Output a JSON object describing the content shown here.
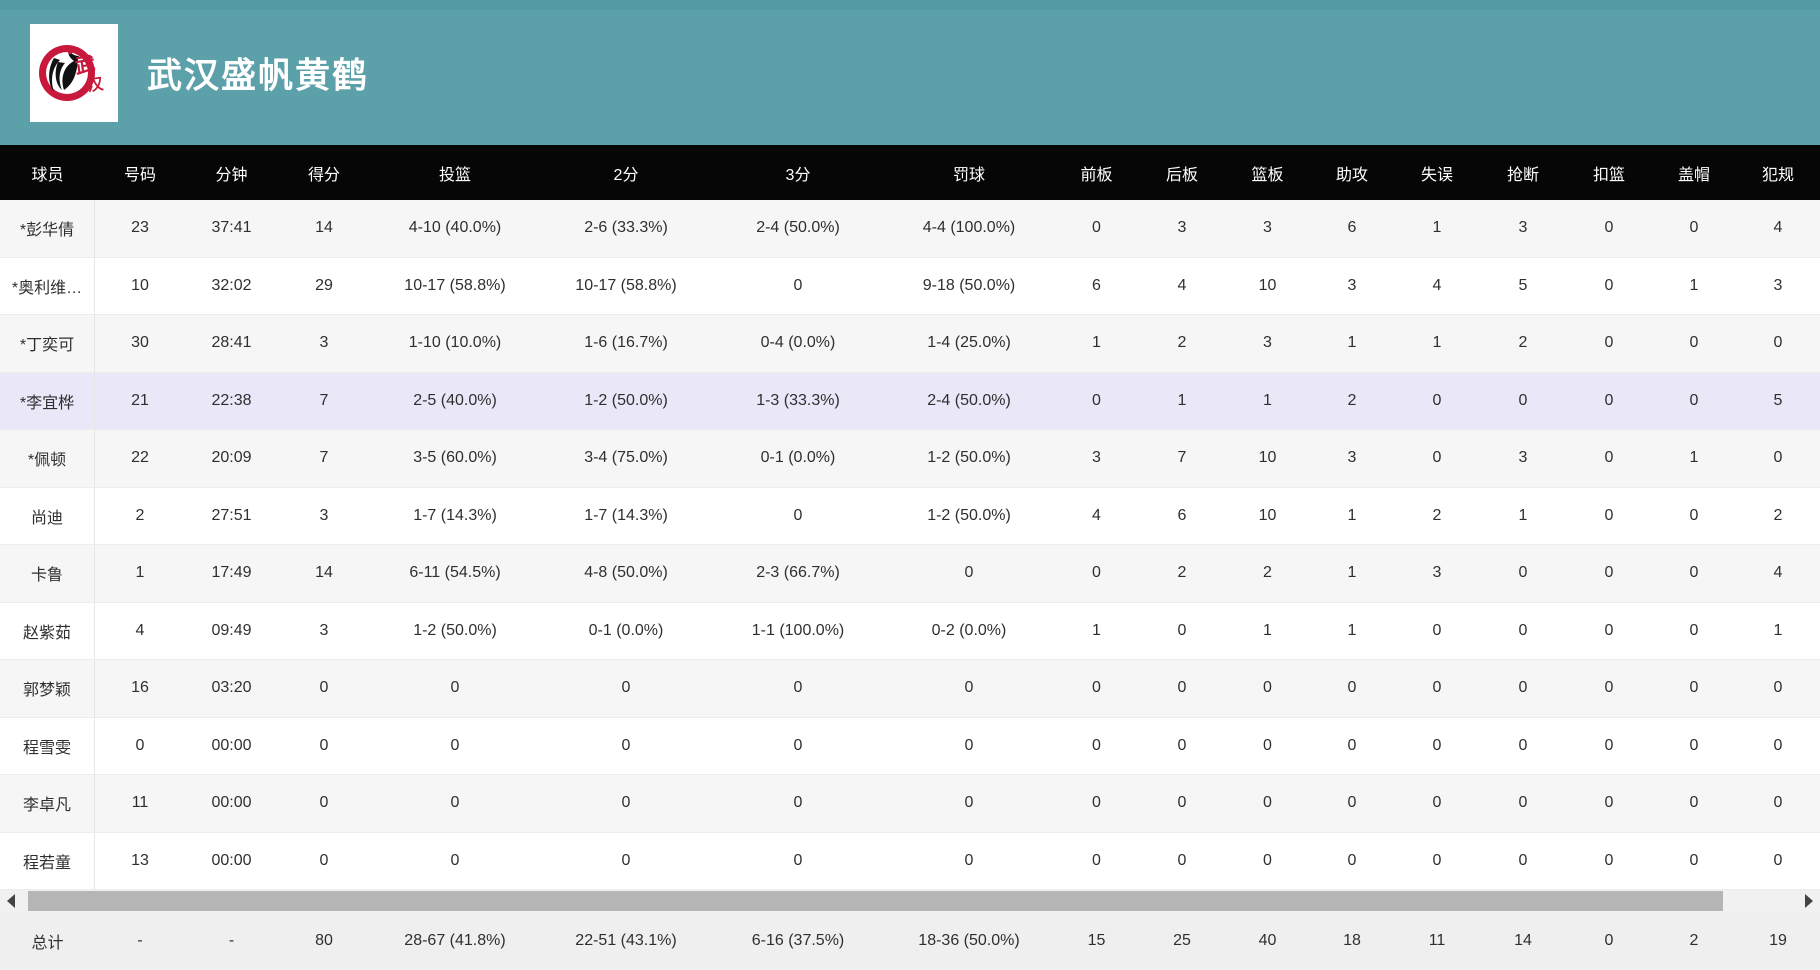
{
  "header": {
    "team_name": "武汉盛帆黄鹤",
    "logo_text": "武汉"
  },
  "colors": {
    "banner_teal": "#5ca0aa",
    "table_header_black": "#060606",
    "highlight_row_lavender": "#e9e7f8",
    "alt_row_gray": "#f6f6f6",
    "logo_red": "#c8193c"
  },
  "table": {
    "columns": [
      {
        "key": "player",
        "label": "球员"
      },
      {
        "key": "number",
        "label": "号码"
      },
      {
        "key": "minutes",
        "label": "分钟"
      },
      {
        "key": "points",
        "label": "得分"
      },
      {
        "key": "fg",
        "label": "投篮"
      },
      {
        "key": "two_pt",
        "label": "2分"
      },
      {
        "key": "three_pt",
        "label": "3分"
      },
      {
        "key": "ft",
        "label": "罚球"
      },
      {
        "key": "oreb",
        "label": "前板"
      },
      {
        "key": "dreb",
        "label": "后板"
      },
      {
        "key": "reb",
        "label": "篮板"
      },
      {
        "key": "ast",
        "label": "助攻"
      },
      {
        "key": "to",
        "label": "失误"
      },
      {
        "key": "stl",
        "label": "抢断"
      },
      {
        "key": "dunk",
        "label": "扣篮"
      },
      {
        "key": "blk",
        "label": "盖帽"
      },
      {
        "key": "pf",
        "label": "犯规"
      }
    ],
    "rows": [
      {
        "highlighted": false,
        "cells": [
          "*彭华倩",
          "23",
          "37:41",
          "14",
          "4-10 (40.0%)",
          "2-6 (33.3%)",
          "2-4 (50.0%)",
          "4-4 (100.0%)",
          "0",
          "3",
          "3",
          "6",
          "1",
          "3",
          "0",
          "0",
          "4"
        ]
      },
      {
        "highlighted": false,
        "cells": [
          "*奥利维…",
          "10",
          "32:02",
          "29",
          "10-17 (58.8%)",
          "10-17 (58.8%)",
          "0",
          "9-18 (50.0%)",
          "6",
          "4",
          "10",
          "3",
          "4",
          "5",
          "0",
          "1",
          "3"
        ]
      },
      {
        "highlighted": false,
        "cells": [
          "*丁奕可",
          "30",
          "28:41",
          "3",
          "1-10 (10.0%)",
          "1-6 (16.7%)",
          "0-4 (0.0%)",
          "1-4 (25.0%)",
          "1",
          "2",
          "3",
          "1",
          "1",
          "2",
          "0",
          "0",
          "0"
        ]
      },
      {
        "highlighted": true,
        "cells": [
          "*李宜桦",
          "21",
          "22:38",
          "7",
          "2-5 (40.0%)",
          "1-2 (50.0%)",
          "1-3 (33.3%)",
          "2-4 (50.0%)",
          "0",
          "1",
          "1",
          "2",
          "0",
          "0",
          "0",
          "0",
          "5"
        ]
      },
      {
        "highlighted": false,
        "cells": [
          "*佩顿",
          "22",
          "20:09",
          "7",
          "3-5 (60.0%)",
          "3-4 (75.0%)",
          "0-1 (0.0%)",
          "1-2 (50.0%)",
          "3",
          "7",
          "10",
          "3",
          "0",
          "3",
          "0",
          "1",
          "0"
        ]
      },
      {
        "highlighted": false,
        "cells": [
          "尚迪",
          "2",
          "27:51",
          "3",
          "1-7 (14.3%)",
          "1-7 (14.3%)",
          "0",
          "1-2 (50.0%)",
          "4",
          "6",
          "10",
          "1",
          "2",
          "1",
          "0",
          "0",
          "2"
        ]
      },
      {
        "highlighted": false,
        "cells": [
          "卡鲁",
          "1",
          "17:49",
          "14",
          "6-11 (54.5%)",
          "4-8 (50.0%)",
          "2-3 (66.7%)",
          "0",
          "0",
          "2",
          "2",
          "1",
          "3",
          "0",
          "0",
          "0",
          "4"
        ]
      },
      {
        "highlighted": false,
        "cells": [
          "赵紫茹",
          "4",
          "09:49",
          "3",
          "1-2 (50.0%)",
          "0-1 (0.0%)",
          "1-1 (100.0%)",
          "0-2 (0.0%)",
          "1",
          "0",
          "1",
          "1",
          "0",
          "0",
          "0",
          "0",
          "1"
        ]
      },
      {
        "highlighted": false,
        "cells": [
          "郭梦颖",
          "16",
          "03:20",
          "0",
          "0",
          "0",
          "0",
          "0",
          "0",
          "0",
          "0",
          "0",
          "0",
          "0",
          "0",
          "0",
          "0"
        ]
      },
      {
        "highlighted": false,
        "cells": [
          "程雪雯",
          "0",
          "00:00",
          "0",
          "0",
          "0",
          "0",
          "0",
          "0",
          "0",
          "0",
          "0",
          "0",
          "0",
          "0",
          "0",
          "0"
        ]
      },
      {
        "highlighted": false,
        "cells": [
          "李卓凡",
          "11",
          "00:00",
          "0",
          "0",
          "0",
          "0",
          "0",
          "0",
          "0",
          "0",
          "0",
          "0",
          "0",
          "0",
          "0",
          "0"
        ]
      },
      {
        "highlighted": false,
        "cells": [
          "程若童",
          "13",
          "00:00",
          "0",
          "0",
          "0",
          "0",
          "0",
          "0",
          "0",
          "0",
          "0",
          "0",
          "0",
          "0",
          "0",
          "0"
        ]
      }
    ],
    "total": {
      "cells": [
        "总计",
        "-",
        "-",
        "80",
        "28-67 (41.8%)",
        "22-51 (43.1%)",
        "6-16 (37.5%)",
        "18-36 (50.0%)",
        "15",
        "25",
        "40",
        "18",
        "11",
        "14",
        "0",
        "2",
        "19"
      ]
    }
  }
}
